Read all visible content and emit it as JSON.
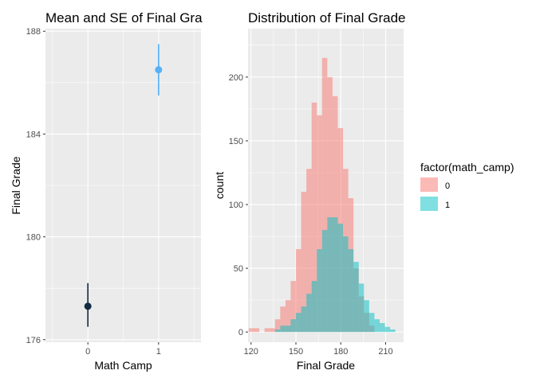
{
  "chart_data": [
    {
      "type": "scatter",
      "title": "Mean and SE of Final Gra",
      "xlabel": "Math Camp",
      "ylabel": "Final Grade",
      "xlim": [
        -0.6,
        1.6
      ],
      "ylim": [
        175.9,
        188.1
      ],
      "x_ticks": [
        0,
        1
      ],
      "y_ticks": [
        176,
        180,
        184,
        188
      ],
      "grid": true,
      "points": [
        {
          "x": 0,
          "y": 177.3,
          "lower": 176.5,
          "upper": 178.2,
          "color": "#132b43"
        },
        {
          "x": 1,
          "y": 186.5,
          "lower": 185.5,
          "upper": 187.5,
          "color": "#56b1f7"
        }
      ]
    },
    {
      "type": "bar",
      "subtype": "histogram",
      "title": "Distribution of Final Grade",
      "xlabel": "Final Grade",
      "ylabel": "count",
      "xlim": [
        118,
        222
      ],
      "ylim": [
        -8,
        238
      ],
      "x_ticks": [
        120,
        150,
        180,
        210
      ],
      "y_ticks": [
        0,
        50,
        100,
        150,
        200
      ],
      "grid": true,
      "bin_width": 3.5,
      "bin_start": 118.5,
      "legend": {
        "title": "factor(math_camp)",
        "position": "right",
        "entries": [
          {
            "label": "0",
            "color": "#f8766d"
          },
          {
            "label": "1",
            "color": "#00bfc4"
          }
        ]
      },
      "series": [
        {
          "name": "0",
          "color": "#f8766d",
          "values": [
            3,
            3,
            0,
            3,
            3,
            10,
            20,
            25,
            40,
            65,
            110,
            128,
            180,
            170,
            215,
            200,
            185,
            160,
            128,
            105,
            50,
            28,
            15,
            5,
            0,
            0,
            0,
            0,
            0,
            0
          ]
        },
        {
          "name": "1",
          "color": "#00bfc4",
          "values": [
            0,
            0,
            0,
            0,
            0,
            2,
            5,
            5,
            10,
            15,
            20,
            30,
            40,
            65,
            80,
            90,
            90,
            85,
            75,
            65,
            55,
            38,
            25,
            15,
            10,
            7,
            4,
            2,
            0,
            0
          ]
        }
      ]
    }
  ]
}
